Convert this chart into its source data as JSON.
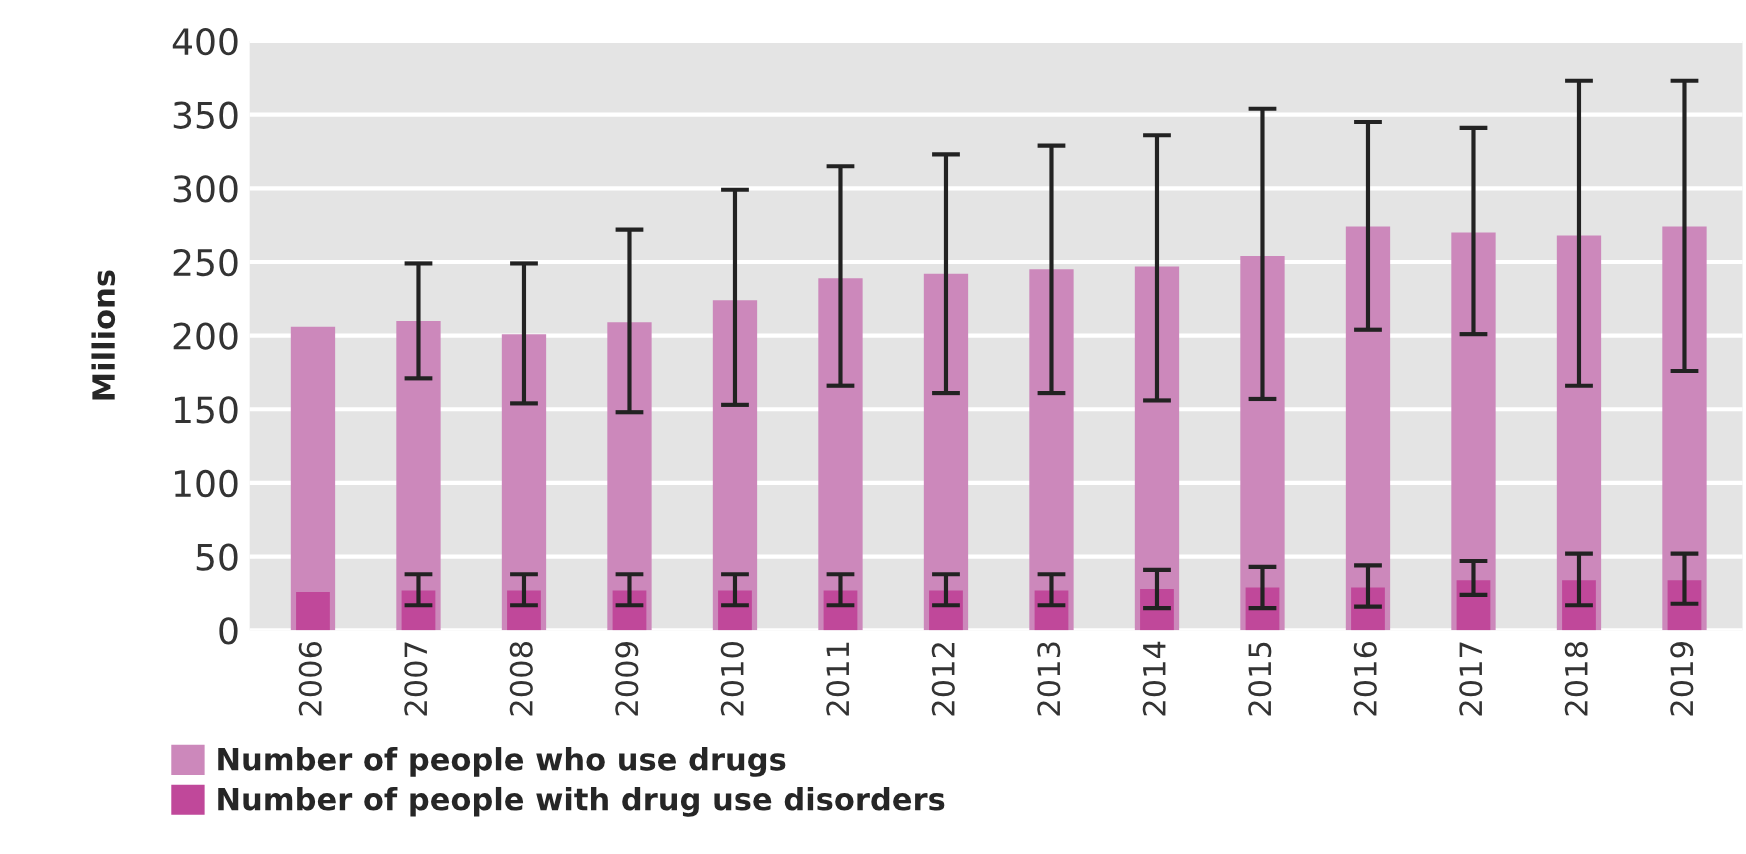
{
  "chart_data": {
    "type": "bar",
    "ylabel": "Millions",
    "categories": [
      "2006",
      "2007",
      "2008",
      "2009",
      "2010",
      "2011",
      "2012",
      "2013",
      "2014",
      "2015",
      "2016",
      "2017",
      "2018",
      "2019"
    ],
    "series": [
      {
        "name": "Number of people who use drugs",
        "color": "#cc88bb",
        "values": [
          206,
          210,
          201,
          209,
          224,
          239,
          242,
          245,
          247,
          254,
          274,
          270,
          268,
          274
        ],
        "errors": [
          null,
          [
            171,
            249
          ],
          [
            154,
            249
          ],
          [
            148,
            272
          ],
          [
            153,
            299
          ],
          [
            166,
            315
          ],
          [
            161,
            323
          ],
          [
            161,
            329
          ],
          [
            156,
            336
          ],
          [
            157,
            354
          ],
          [
            204,
            345
          ],
          [
            201,
            341
          ],
          [
            166,
            373
          ],
          [
            176,
            373
          ]
        ]
      },
      {
        "name": "Number of people with drug use disorders",
        "color": "#c0489a",
        "values": [
          26,
          27,
          27,
          27,
          27,
          27,
          27,
          27,
          28,
          29,
          29,
          34,
          34,
          34
        ],
        "errors": [
          null,
          [
            17,
            38
          ],
          [
            17,
            38
          ],
          [
            17,
            38
          ],
          [
            17,
            38
          ],
          [
            17,
            38
          ],
          [
            17,
            38
          ],
          [
            17,
            38
          ],
          [
            15,
            41
          ],
          [
            15,
            43
          ],
          [
            16,
            44
          ],
          [
            24,
            47
          ],
          [
            17,
            52
          ],
          [
            18,
            52
          ]
        ]
      }
    ],
    "ylim": [
      0,
      400
    ],
    "yticks": [
      0,
      50,
      100,
      150,
      200,
      250,
      300,
      350,
      400
    ],
    "grid": "y",
    "legend": "bottom"
  }
}
